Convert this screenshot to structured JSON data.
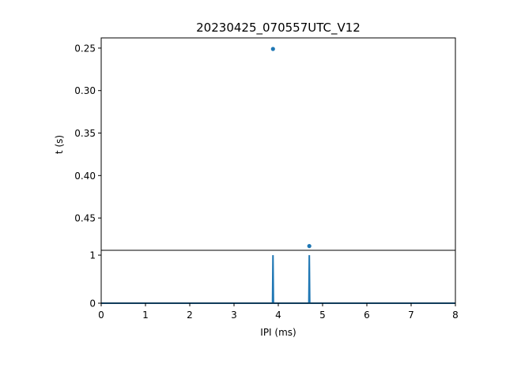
{
  "chart_data": [
    {
      "type": "scatter",
      "title": "20230425_070557UTC_V12",
      "ylabel": "t (s)",
      "xlabel": "",
      "xlim": [
        0,
        8
      ],
      "ylim": [
        0.488,
        0.238
      ],
      "y_inverted": true,
      "yticks": [
        "0.25",
        "0.30",
        "0.35",
        "0.40",
        "0.45"
      ],
      "ytick_values": [
        0.25,
        0.3,
        0.35,
        0.4,
        0.45
      ],
      "points": [
        {
          "x": 3.88,
          "y": 0.251
        },
        {
          "x": 4.7,
          "y": 0.483
        }
      ],
      "grid": false,
      "color": "#1f77b4"
    },
    {
      "type": "line",
      "xlabel": "IPI (ms)",
      "ylabel": "",
      "xlim": [
        0,
        8
      ],
      "ylim": [
        0,
        1.1
      ],
      "xticks": [
        "0",
        "1",
        "2",
        "3",
        "4",
        "5",
        "6",
        "7",
        "8"
      ],
      "xtick_values": [
        0,
        1,
        2,
        3,
        4,
        5,
        6,
        7,
        8
      ],
      "yticks": [
        "0",
        "1"
      ],
      "ytick_values": [
        0,
        1
      ],
      "series": [
        {
          "x": [
            0,
            3.87,
            3.88,
            3.89,
            4.69,
            4.7,
            4.71,
            8
          ],
          "values": [
            0,
            0,
            1,
            0,
            0,
            1,
            0,
            0
          ]
        }
      ],
      "grid": false,
      "color": "#1f77b4"
    }
  ]
}
